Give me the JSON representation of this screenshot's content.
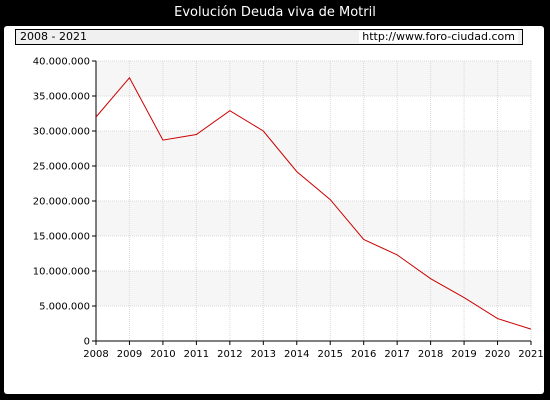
{
  "header": {
    "title": "Evolución Deuda viva de Motril",
    "period": "2008 - 2021",
    "source_url": "http://www.foro-ciudad.com"
  },
  "colors": {
    "line": "#cc0000",
    "band": "#f6f6f6",
    "grid": "#d9d9d9",
    "background": "#000000"
  },
  "chart_data": {
    "type": "line",
    "title": "Evolución Deuda viva de Motril",
    "xlabel": "",
    "ylabel": "",
    "x": [
      2008,
      2009,
      2010,
      2011,
      2012,
      2013,
      2014,
      2015,
      2016,
      2017,
      2018,
      2019,
      2020,
      2021
    ],
    "x_tick_labels": [
      "2008",
      "2009",
      "2010",
      "2011",
      "2012",
      "2013",
      "2014",
      "2015",
      "2016",
      "2017",
      "2018",
      "2019",
      "2020",
      "2021"
    ],
    "series": [
      {
        "values": [
          32000000,
          37600000,
          28700000,
          29500000,
          32900000,
          30000000,
          24200000,
          20200000,
          14500000,
          12300000,
          8900000,
          6200000,
          3200000,
          1700000
        ]
      }
    ],
    "ylim": [
      0,
      40000000
    ],
    "y_ticks": [
      0,
      5000000,
      10000000,
      15000000,
      20000000,
      25000000,
      30000000,
      35000000,
      40000000
    ],
    "y_tick_labels": [
      "0",
      "5.000.000",
      "10.000.000",
      "15.000.000",
      "20.000.000",
      "25.000.000",
      "30.000.000",
      "35.000.000",
      "40.000.000"
    ],
    "grid": true,
    "legend": "none"
  }
}
